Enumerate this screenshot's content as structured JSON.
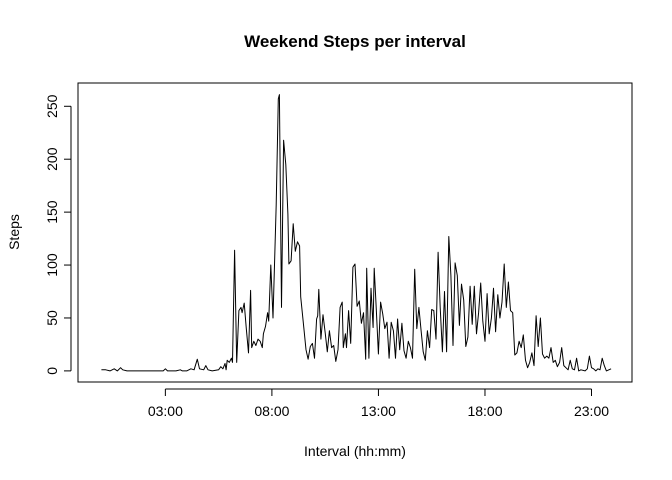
{
  "chart_data": {
    "type": "line",
    "title": "Weekend Steps per interval",
    "xlabel": "Interval (hh:mm)",
    "ylabel": "Steps",
    "x_unit": "time of day (decimal hours)",
    "xlim": [
      -1.1,
      24.9
    ],
    "ylim": [
      -10.5,
      272
    ],
    "x_ticks": [
      {
        "value": 3,
        "label": "03:00"
      },
      {
        "value": 8,
        "label": "08:00"
      },
      {
        "value": 13,
        "label": "13:00"
      },
      {
        "value": 18,
        "label": "18:00"
      },
      {
        "value": 23,
        "label": "23:00"
      }
    ],
    "y_ticks": [
      {
        "value": 0,
        "label": "0"
      },
      {
        "value": 50,
        "label": "50"
      },
      {
        "value": 100,
        "label": "100"
      },
      {
        "value": 150,
        "label": "150"
      },
      {
        "value": 200,
        "label": "200"
      },
      {
        "value": 250,
        "label": "250"
      }
    ],
    "grid": false,
    "line_color": "#000000",
    "series": [
      {
        "points": [
          [
            0.0,
            1
          ],
          [
            0.2,
            1
          ],
          [
            0.4,
            0
          ],
          [
            0.6,
            2
          ],
          [
            0.75,
            0
          ],
          [
            0.9,
            3
          ],
          [
            1.0,
            1
          ],
          [
            1.2,
            0
          ],
          [
            1.5,
            0
          ],
          [
            2.0,
            0
          ],
          [
            2.5,
            0
          ],
          [
            2.9,
            0
          ],
          [
            3.0,
            2
          ],
          [
            3.1,
            0
          ],
          [
            3.5,
            0
          ],
          [
            3.7,
            1
          ],
          [
            3.8,
            0
          ],
          [
            4.0,
            0
          ],
          [
            4.2,
            2
          ],
          [
            4.35,
            1
          ],
          [
            4.5,
            11
          ],
          [
            4.6,
            2
          ],
          [
            4.8,
            1
          ],
          [
            4.9,
            5
          ],
          [
            5.0,
            1
          ],
          [
            5.2,
            0
          ],
          [
            5.5,
            1
          ],
          [
            5.6,
            4
          ],
          [
            5.7,
            2
          ],
          [
            5.8,
            7
          ],
          [
            5.85,
            1
          ],
          [
            5.9,
            10
          ],
          [
            6.0,
            8
          ],
          [
            6.1,
            12
          ],
          [
            6.15,
            8
          ],
          [
            6.25,
            114
          ],
          [
            6.35,
            8
          ],
          [
            6.45,
            57
          ],
          [
            6.55,
            60
          ],
          [
            6.6,
            55
          ],
          [
            6.7,
            64
          ],
          [
            6.8,
            40
          ],
          [
            6.9,
            17
          ],
          [
            7.0,
            76
          ],
          [
            7.05,
            22
          ],
          [
            7.15,
            28
          ],
          [
            7.25,
            24
          ],
          [
            7.35,
            30
          ],
          [
            7.45,
            28
          ],
          [
            7.55,
            22
          ],
          [
            7.6,
            35
          ],
          [
            7.7,
            42
          ],
          [
            7.8,
            55
          ],
          [
            7.85,
            47
          ],
          [
            7.95,
            100
          ],
          [
            8.05,
            50
          ],
          [
            8.2,
            157
          ],
          [
            8.3,
            257
          ],
          [
            8.35,
            261
          ],
          [
            8.45,
            60
          ],
          [
            8.55,
            218
          ],
          [
            8.65,
            195
          ],
          [
            8.75,
            148
          ],
          [
            8.8,
            101
          ],
          [
            8.9,
            104
          ],
          [
            9.0,
            139
          ],
          [
            9.1,
            113
          ],
          [
            9.2,
            122
          ],
          [
            9.3,
            118
          ],
          [
            9.35,
            70
          ],
          [
            9.5,
            40
          ],
          [
            9.6,
            20
          ],
          [
            9.7,
            11
          ],
          [
            9.8,
            23
          ],
          [
            9.9,
            26
          ],
          [
            10.0,
            12
          ],
          [
            10.1,
            49
          ],
          [
            10.15,
            52
          ],
          [
            10.2,
            77
          ],
          [
            10.3,
            30
          ],
          [
            10.4,
            53
          ],
          [
            10.5,
            36
          ],
          [
            10.6,
            18
          ],
          [
            10.7,
            38
          ],
          [
            10.8,
            22
          ],
          [
            10.9,
            24
          ],
          [
            11.0,
            9
          ],
          [
            11.1,
            20
          ],
          [
            11.2,
            60
          ],
          [
            11.3,
            65
          ],
          [
            11.35,
            22
          ],
          [
            11.45,
            35
          ],
          [
            11.5,
            22
          ],
          [
            11.6,
            57
          ],
          [
            11.7,
            26
          ],
          [
            11.8,
            98
          ],
          [
            11.9,
            101
          ],
          [
            12.0,
            61
          ],
          [
            12.1,
            66
          ],
          [
            12.2,
            45
          ],
          [
            12.3,
            55
          ],
          [
            12.4,
            11
          ],
          [
            12.45,
            97
          ],
          [
            12.55,
            12
          ],
          [
            12.65,
            78
          ],
          [
            12.75,
            41
          ],
          [
            12.8,
            97
          ],
          [
            12.9,
            58
          ],
          [
            13.0,
            16
          ],
          [
            13.1,
            65
          ],
          [
            13.2,
            54
          ],
          [
            13.3,
            40
          ],
          [
            13.4,
            46
          ],
          [
            13.5,
            12
          ],
          [
            13.6,
            46
          ],
          [
            13.7,
            38
          ],
          [
            13.8,
            12
          ],
          [
            13.9,
            49
          ],
          [
            14.0,
            20
          ],
          [
            14.1,
            45
          ],
          [
            14.2,
            19
          ],
          [
            14.3,
            12
          ],
          [
            14.4,
            28
          ],
          [
            14.5,
            22
          ],
          [
            14.6,
            12
          ],
          [
            14.7,
            96
          ],
          [
            14.8,
            40
          ],
          [
            14.9,
            60
          ],
          [
            15.0,
            38
          ],
          [
            15.1,
            18
          ],
          [
            15.2,
            10
          ],
          [
            15.3,
            38
          ],
          [
            15.4,
            22
          ],
          [
            15.5,
            58
          ],
          [
            15.6,
            57
          ],
          [
            15.7,
            30
          ],
          [
            15.8,
            112
          ],
          [
            15.9,
            60
          ],
          [
            16.0,
            18
          ],
          [
            16.1,
            75
          ],
          [
            16.2,
            18
          ],
          [
            16.3,
            127
          ],
          [
            16.4,
            90
          ],
          [
            16.5,
            24
          ],
          [
            16.6,
            102
          ],
          [
            16.7,
            90
          ],
          [
            16.8,
            43
          ],
          [
            16.9,
            82
          ],
          [
            17.0,
            67
          ],
          [
            17.1,
            23
          ],
          [
            17.2,
            32
          ],
          [
            17.3,
            80
          ],
          [
            17.4,
            44
          ],
          [
            17.5,
            80
          ],
          [
            17.6,
            35
          ],
          [
            17.7,
            55
          ],
          [
            17.8,
            83
          ],
          [
            17.9,
            47
          ],
          [
            18.0,
            28
          ],
          [
            18.1,
            73
          ],
          [
            18.2,
            35
          ],
          [
            18.3,
            50
          ],
          [
            18.4,
            78
          ],
          [
            18.5,
            37
          ],
          [
            18.6,
            72
          ],
          [
            18.7,
            50
          ],
          [
            18.8,
            65
          ],
          [
            18.9,
            101
          ],
          [
            19.0,
            60
          ],
          [
            19.1,
            84
          ],
          [
            19.2,
            57
          ],
          [
            19.3,
            55
          ],
          [
            19.4,
            15
          ],
          [
            19.5,
            17
          ],
          [
            19.6,
            28
          ],
          [
            19.7,
            22
          ],
          [
            19.8,
            34
          ],
          [
            19.9,
            10
          ],
          [
            20.0,
            3
          ],
          [
            20.1,
            8
          ],
          [
            20.2,
            17
          ],
          [
            20.3,
            5
          ],
          [
            20.4,
            52
          ],
          [
            20.5,
            23
          ],
          [
            20.6,
            50
          ],
          [
            20.7,
            16
          ],
          [
            20.8,
            12
          ],
          [
            20.9,
            14
          ],
          [
            21.0,
            12
          ],
          [
            21.1,
            22
          ],
          [
            21.2,
            8
          ],
          [
            21.3,
            10
          ],
          [
            21.4,
            4
          ],
          [
            21.5,
            8
          ],
          [
            21.6,
            22
          ],
          [
            21.7,
            5
          ],
          [
            21.8,
            3
          ],
          [
            21.9,
            1
          ],
          [
            22.0,
            10
          ],
          [
            22.1,
            2
          ],
          [
            22.2,
            1
          ],
          [
            22.3,
            12
          ],
          [
            22.4,
            0
          ],
          [
            22.5,
            1
          ],
          [
            22.7,
            0
          ],
          [
            22.8,
            2
          ],
          [
            22.9,
            14
          ],
          [
            23.0,
            3
          ],
          [
            23.1,
            2
          ],
          [
            23.2,
            0
          ],
          [
            23.3,
            2
          ],
          [
            23.4,
            1
          ],
          [
            23.5,
            12
          ],
          [
            23.6,
            5
          ],
          [
            23.7,
            0
          ],
          [
            23.92,
            2
          ]
        ]
      }
    ]
  }
}
